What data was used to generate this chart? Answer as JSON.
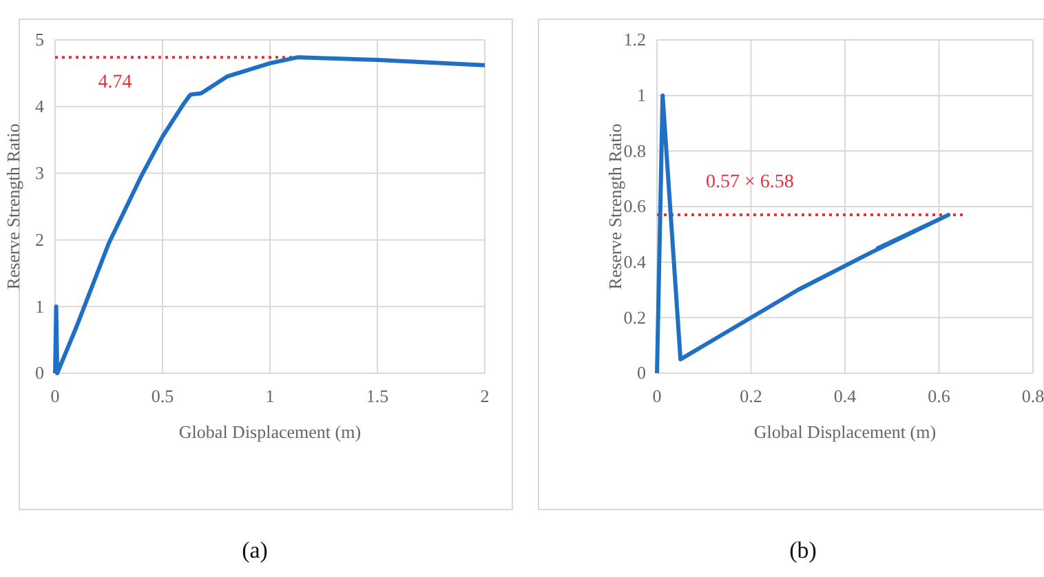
{
  "chart_data": [
    {
      "type": "line",
      "title": "(a)",
      "xlabel": "Global Displacement (m)",
      "ylabel": "Reserve Strength Ratio",
      "xlim": [
        0,
        2
      ],
      "xticks": [
        0,
        0.5,
        1,
        1.5,
        2
      ],
      "ylim": [
        0,
        5
      ],
      "yticks": [
        0,
        1,
        2,
        3,
        4,
        5
      ],
      "grid": true,
      "marker": "none",
      "line_style": "solid",
      "series": [
        {
          "color": "#1f6fc5",
          "x": [
            0,
            0.005,
            0.01,
            0.1,
            0.25,
            0.4,
            0.5,
            0.6,
            0.63,
            0.68,
            0.8,
            1,
            1.13,
            1.5,
            2
          ],
          "values": [
            0,
            1,
            0,
            0.7,
            1.95,
            2.95,
            3.55,
            4.05,
            4.18,
            4.2,
            4.45,
            4.65,
            4.74,
            4.7,
            4.62
          ]
        }
      ],
      "ref_lines": [
        {
          "axis": "y",
          "value": 4.74,
          "label": "4.74",
          "color": "#e8303a",
          "line_style": "dotted"
        }
      ]
    },
    {
      "type": "line",
      "title": "(b)",
      "xlabel": "Global Displacement (m)",
      "ylabel": "Reserve Strength Ratio",
      "xlim": [
        0,
        0.8
      ],
      "xticks": [
        0,
        0.2,
        0.4,
        0.6,
        0.8
      ],
      "ylim": [
        0,
        1.2
      ],
      "yticks": [
        0,
        0.2,
        0.4,
        0.6,
        0.8,
        1,
        1.2
      ],
      "grid": true,
      "marker": "none",
      "line_style": "solid",
      "series": [
        {
          "color": "#1f6fc5",
          "x": [
            0,
            0.012,
            0.05,
            0.3,
            0.45,
            0.62,
            0.47,
            0.62
          ],
          "values": [
            0,
            1,
            0.05,
            0.3,
            0.43,
            0.57,
            0.45,
            0.57
          ]
        }
      ],
      "ref_lines": [
        {
          "axis": "y",
          "value": 0.57,
          "label": "0.57 × 6.58",
          "color": "#e8303a",
          "line_style": "dotted"
        }
      ]
    }
  ]
}
